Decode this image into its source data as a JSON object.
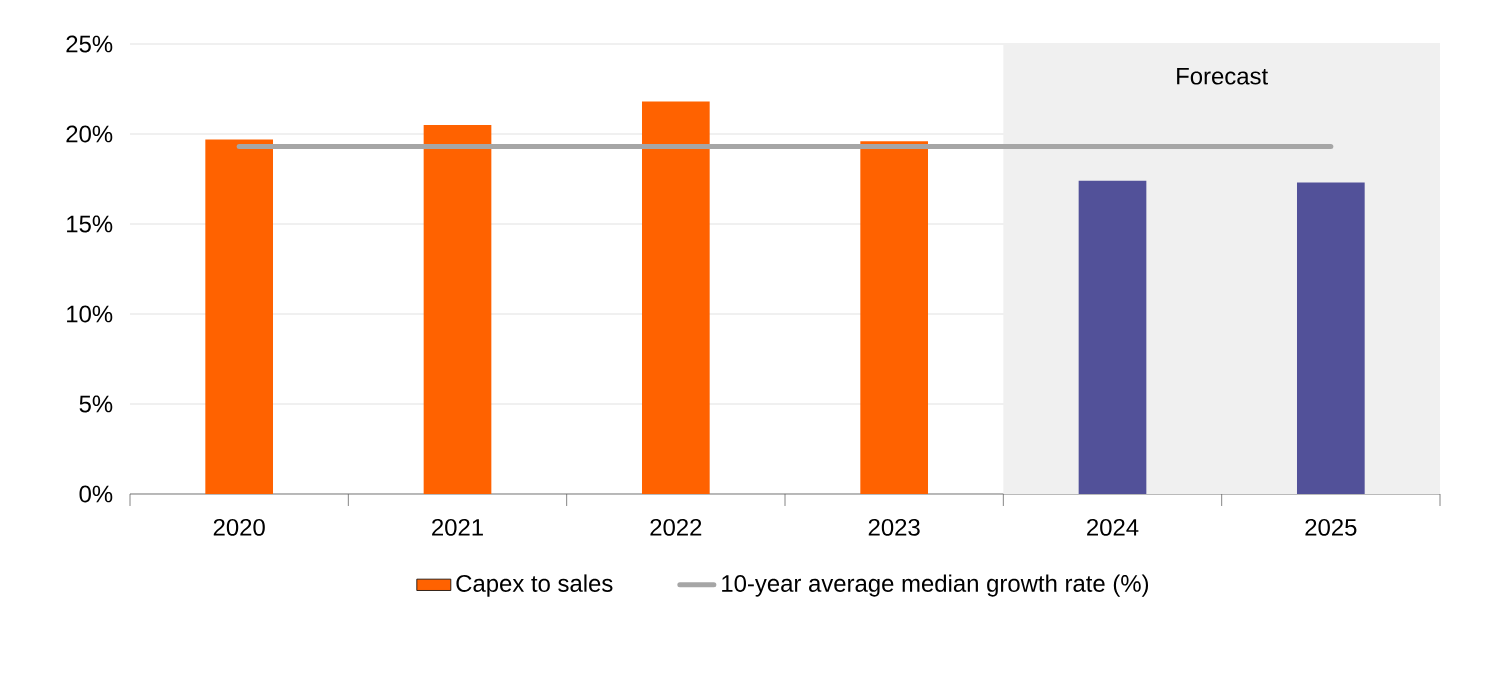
{
  "chart_data": {
    "type": "bar",
    "categories": [
      "2020",
      "2021",
      "2022",
      "2023",
      "2024",
      "2025"
    ],
    "series": [
      {
        "name": "Capex to sales",
        "colors": [
          "#ff6200",
          "#ff6200",
          "#ff6200",
          "#ff6200",
          "#525199",
          "#525199"
        ],
        "values": [
          19.7,
          20.5,
          21.8,
          19.6,
          17.4,
          17.3
        ]
      },
      {
        "name": "10-year average median growth rate (%)",
        "type": "line",
        "color": "#a6a6a6",
        "values": [
          19.3,
          19.3,
          19.3,
          19.3,
          19.3,
          19.3
        ]
      }
    ],
    "ylim": [
      0,
      25
    ],
    "yticks": [
      {
        "value": 0,
        "label": "0%"
      },
      {
        "value": 5,
        "label": "5%"
      },
      {
        "value": 10,
        "label": "10%"
      },
      {
        "value": 15,
        "label": "15%"
      },
      {
        "value": 20,
        "label": "20%"
      },
      {
        "value": 25,
        "label": "25%"
      }
    ],
    "bands": [
      {
        "axis": "x",
        "from": "2024",
        "to": "2025",
        "label": "Forecast",
        "color": "#f0f0f0"
      }
    ],
    "grid": "y",
    "legend": "bottom"
  }
}
